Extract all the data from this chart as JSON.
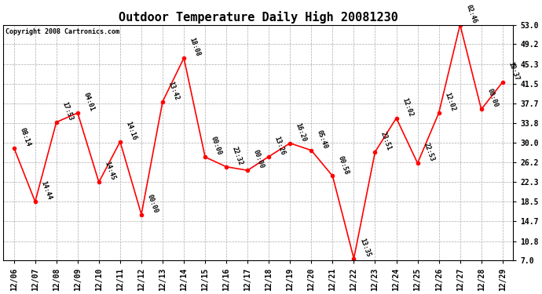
{
  "title": "Outdoor Temperature Daily High 20081230",
  "copyright": "Copyright 2008 Cartronics.com",
  "x_labels": [
    "12/06",
    "12/07",
    "12/08",
    "12/09",
    "12/10",
    "12/11",
    "12/12",
    "12/13",
    "12/14",
    "12/15",
    "12/16",
    "12/17",
    "12/18",
    "12/19",
    "12/20",
    "12/21",
    "12/22",
    "12/23",
    "12/24",
    "12/25",
    "12/26",
    "12/27",
    "12/28",
    "12/29"
  ],
  "y_values": [
    29.0,
    18.5,
    34.0,
    35.8,
    22.3,
    30.2,
    16.0,
    38.0,
    46.5,
    27.2,
    25.3,
    24.6,
    27.3,
    29.9,
    28.5,
    23.5,
    7.4,
    28.2,
    34.8,
    26.0,
    35.8,
    53.0,
    36.5,
    41.8
  ],
  "annotations": [
    "08:14",
    "14:44",
    "17:53",
    "04:01",
    "14:45",
    "14:16",
    "00:00",
    "13:42",
    "18:08",
    "00:00",
    "22:32",
    "00:00",
    "13:26",
    "16:20",
    "05:40",
    "00:58",
    "13:35",
    "23:51",
    "12:02",
    "22:53",
    "12:02",
    "02:46",
    "00:00",
    "10:37"
  ],
  "y_ticks": [
    7.0,
    10.8,
    14.7,
    18.5,
    22.3,
    26.2,
    30.0,
    33.8,
    37.7,
    41.5,
    45.3,
    49.2,
    53.0
  ],
  "ylim": [
    7.0,
    53.0
  ],
  "line_color": "red",
  "marker_color": "red",
  "bg_color": "white",
  "grid_color": "#aaaaaa",
  "title_fontsize": 11,
  "annotation_fontsize": 6,
  "copyright_fontsize": 6,
  "tick_fontsize": 7
}
